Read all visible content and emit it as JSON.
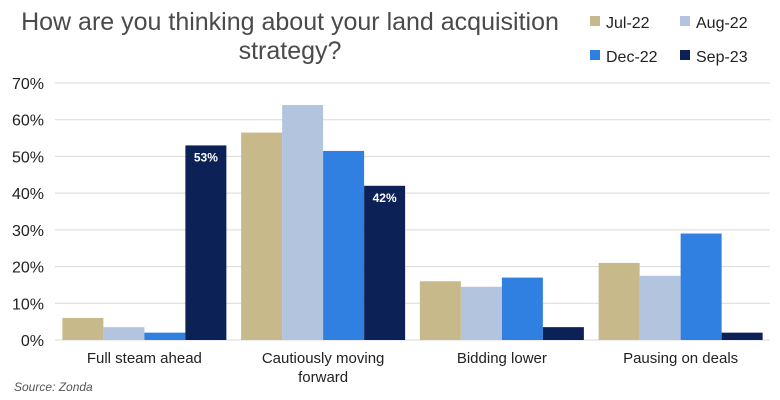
{
  "chart_data": {
    "type": "bar",
    "title": "How are you thinking about your land acquisition strategy?",
    "title_lines": [
      "How are you thinking about your land acquisition",
      "strategy?"
    ],
    "categories": [
      "Full steam ahead",
      "Cautiously moving forward",
      "Bidding lower",
      "Pausing on deals"
    ],
    "category_lines": [
      [
        "Full steam ahead"
      ],
      [
        "Cautiously moving",
        "forward"
      ],
      [
        "Bidding lower"
      ],
      [
        "Pausing on deals"
      ]
    ],
    "series": [
      {
        "name": "Jul-22",
        "color": "#c8b98a",
        "values": [
          6,
          56.5,
          16,
          21
        ]
      },
      {
        "name": "Aug-22",
        "color": "#b3c5de",
        "values": [
          3.5,
          64,
          14.5,
          17.5
        ]
      },
      {
        "name": "Dec-22",
        "color": "#2f80e0",
        "values": [
          2,
          51.5,
          17,
          29
        ]
      },
      {
        "name": "Sep-23",
        "color": "#0c2156",
        "values": [
          53,
          42,
          3.5,
          2
        ]
      }
    ],
    "data_labels": [
      {
        "series": "Sep-23",
        "category": "Full steam ahead",
        "text": "53%"
      },
      {
        "series": "Sep-23",
        "category": "Cautiously moving forward",
        "text": "42%"
      }
    ],
    "ylim": [
      0,
      70
    ],
    "yticks": [
      "0%",
      "10%",
      "20%",
      "30%",
      "40%",
      "50%",
      "60%",
      "70%"
    ],
    "xlabel": "",
    "ylabel": "",
    "grid": true,
    "legend_position": "top-right",
    "source": "Source: Zonda"
  }
}
